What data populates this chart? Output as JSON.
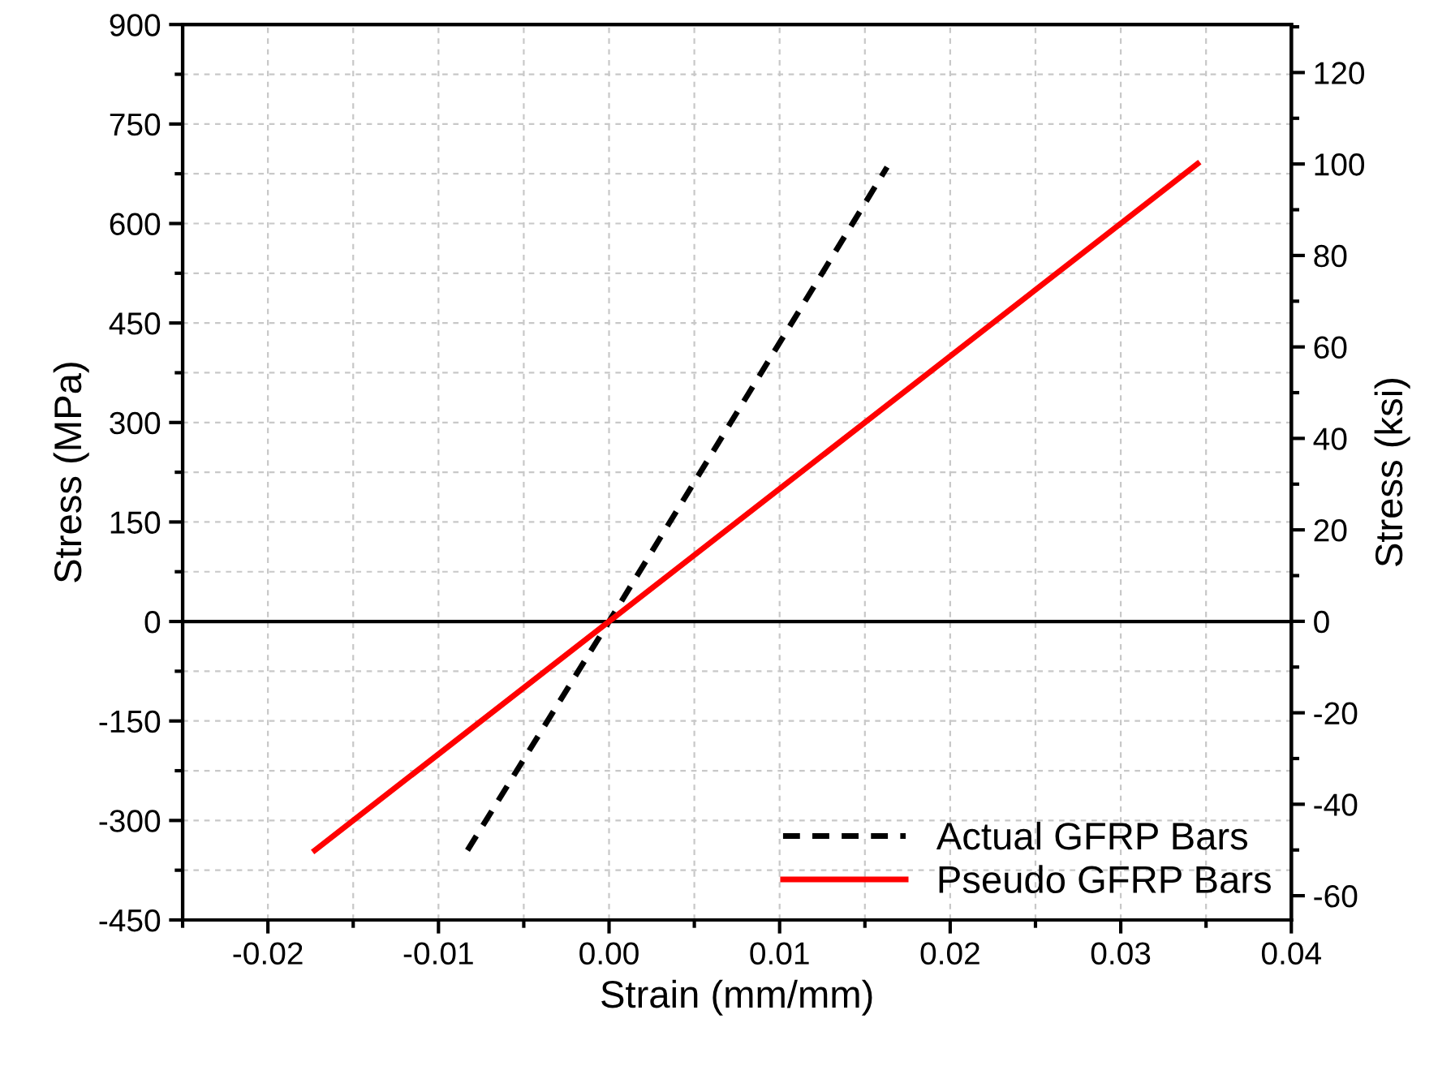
{
  "chart_data": {
    "type": "line",
    "xlabel": "Strain (mm/mm)",
    "ylabel": "Stress (MPa)",
    "y2label": "Stress (ksi)",
    "xlim": [
      -0.025,
      0.04
    ],
    "xticks": [
      {
        "value": -0.02,
        "label": "-0.02"
      },
      {
        "value": -0.01,
        "label": "-0.01"
      },
      {
        "value": 0,
        "label": "0.00"
      },
      {
        "value": 0.01,
        "label": "0.01"
      },
      {
        "value": 0.02,
        "label": "0.02"
      },
      {
        "value": 0.03,
        "label": "0.03"
      },
      {
        "value": 0.04,
        "label": "0.04"
      }
    ],
    "ylim": [
      -450,
      900
    ],
    "yticks": [
      -450,
      -300,
      -150,
      0,
      150,
      300,
      450,
      600,
      750,
      900
    ],
    "y2lim": [
      -65.3,
      130.5
    ],
    "y2ticks": [
      -60,
      -40,
      -20,
      0,
      20,
      40,
      60,
      80,
      100,
      120
    ],
    "series": [
      {
        "name": "Actual GFRP Bars",
        "color": "#000000",
        "line_style": "dashed",
        "x": [
          -0.0083,
          0,
          0.0163
        ],
        "values": [
          -345,
          0,
          685
        ]
      },
      {
        "name": "Pseudo GFRP Bars",
        "color": "#ff0000",
        "line_style": "solid",
        "x": [
          -0.01725,
          0,
          0.0345
        ],
        "values": [
          -345,
          0,
          690
        ]
      }
    ],
    "ref_lines": [
      {
        "axis": "y",
        "value": 0,
        "color": "#000000",
        "line_style": "solid"
      }
    ],
    "grid": true,
    "legend": "bottom right",
    "marker": "none"
  }
}
